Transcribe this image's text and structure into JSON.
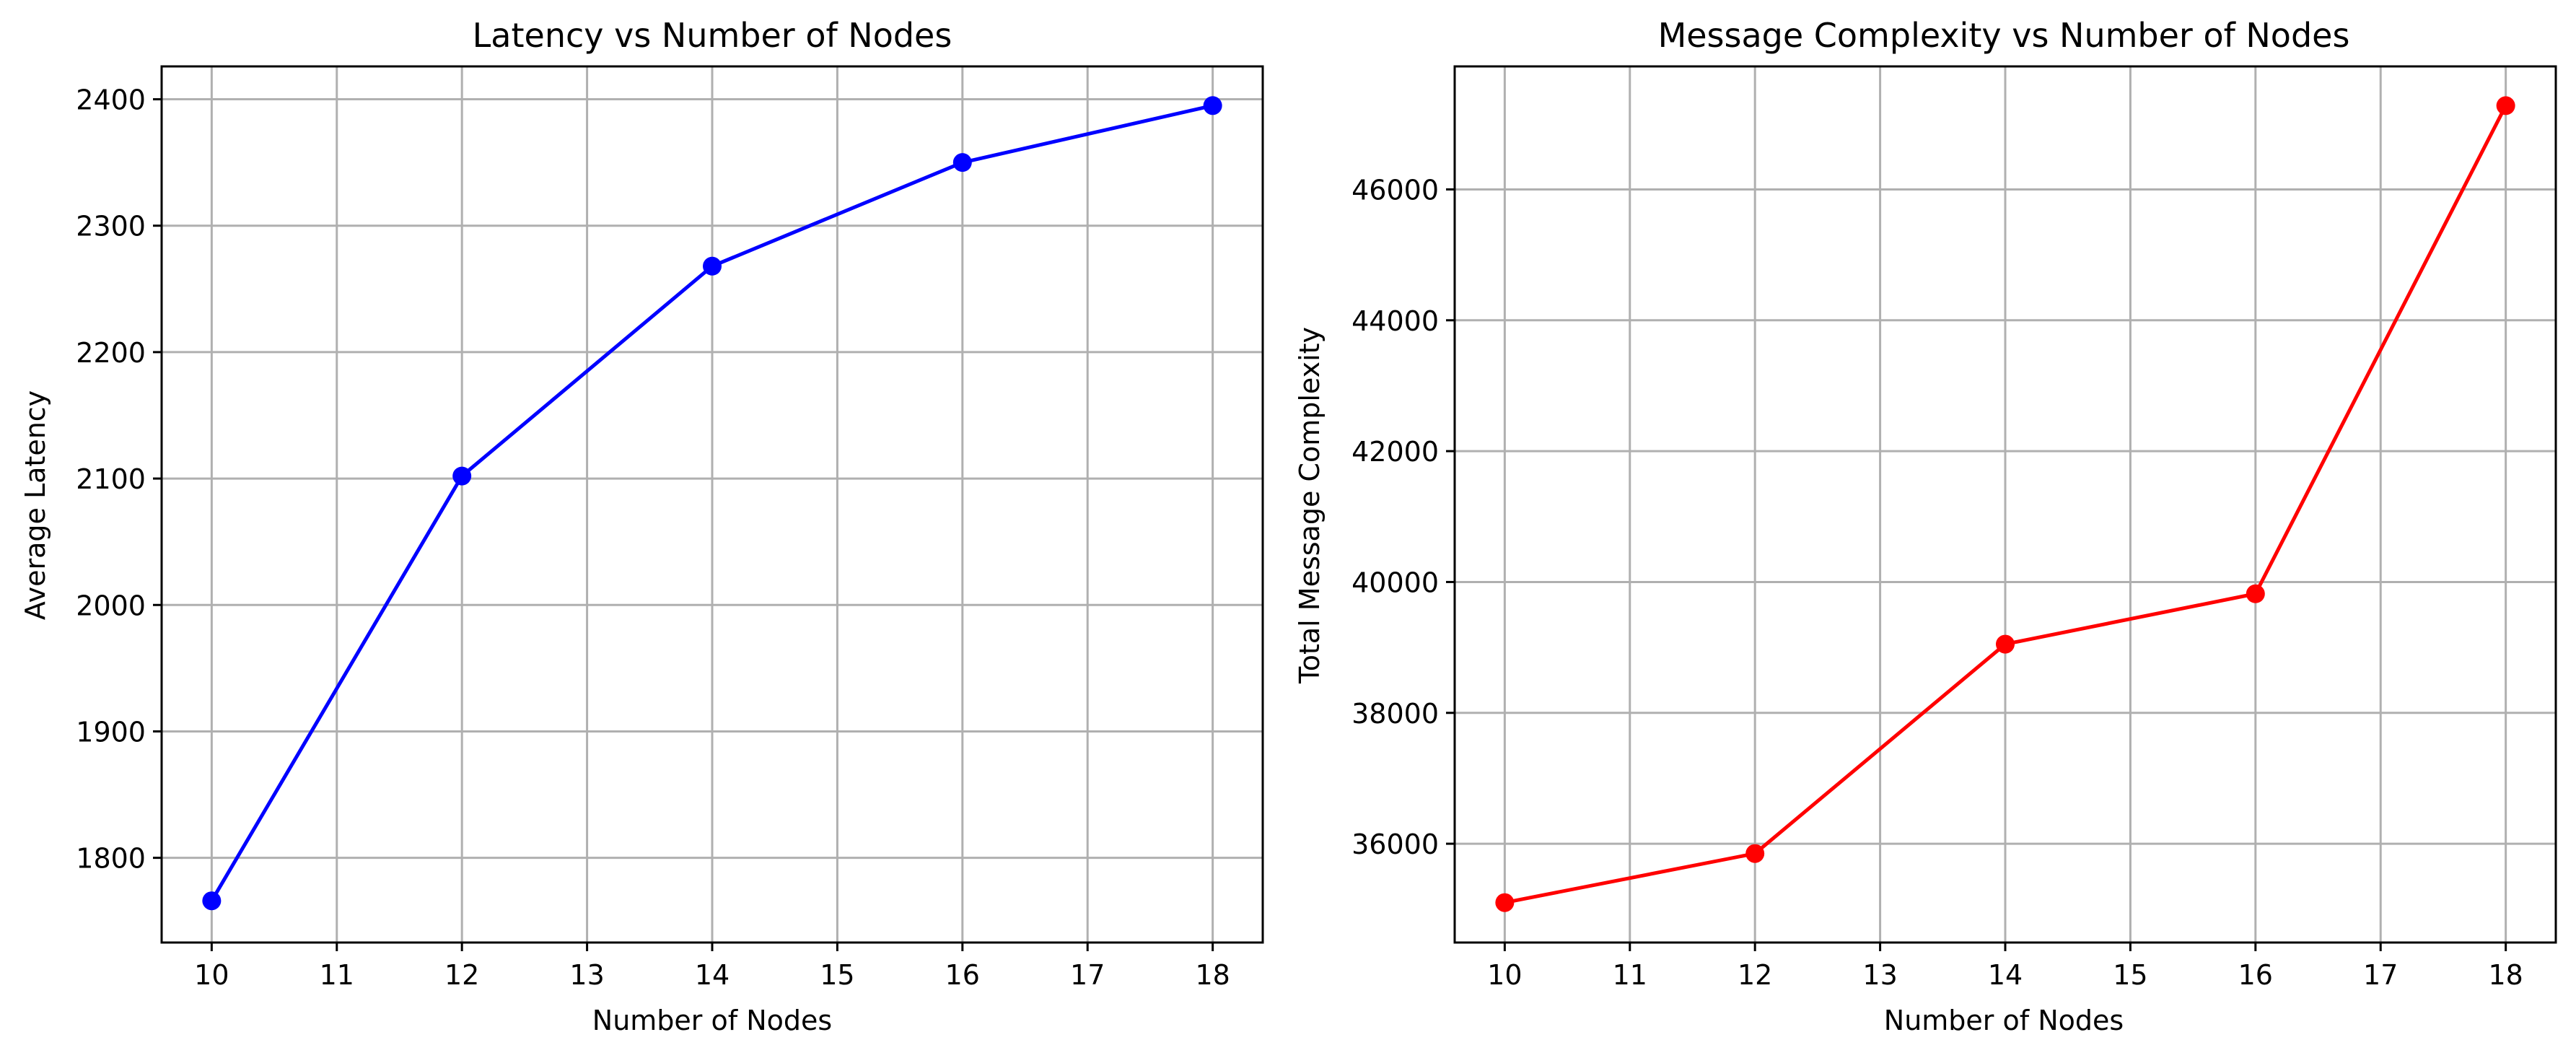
{
  "chart_data": [
    {
      "type": "line",
      "title": "Latency vs Number of Nodes",
      "xlabel": "Number of Nodes",
      "ylabel": "Average Latency",
      "x": [
        10,
        12,
        14,
        16,
        18
      ],
      "series": [
        {
          "values": [
            1766,
            2102,
            2268,
            2350,
            2395
          ],
          "color": "#0000ff",
          "marker": "circle"
        }
      ],
      "xlim": [
        9.6,
        18.4
      ],
      "ylim": [
        1733,
        2426
      ],
      "xticks": [
        10,
        11,
        12,
        13,
        14,
        15,
        16,
        17,
        18
      ],
      "yticks": [
        1800,
        1900,
        2000,
        2100,
        2200,
        2300,
        2400
      ],
      "grid": true
    },
    {
      "type": "line",
      "title": "Message Complexity vs Number of Nodes",
      "xlabel": "Number of Nodes",
      "ylabel": "Total Message Complexity",
      "x": [
        10,
        12,
        14,
        16,
        18
      ],
      "series": [
        {
          "values": [
            35100,
            35850,
            39050,
            39820,
            47280
          ],
          "color": "#ff0000",
          "marker": "circle"
        }
      ],
      "xlim": [
        9.6,
        18.4
      ],
      "ylim": [
        34490,
        47880
      ],
      "xticks": [
        10,
        11,
        12,
        13,
        14,
        15,
        16,
        17,
        18
      ],
      "yticks": [
        36000,
        38000,
        40000,
        42000,
        44000,
        46000
      ],
      "grid": true
    }
  ]
}
